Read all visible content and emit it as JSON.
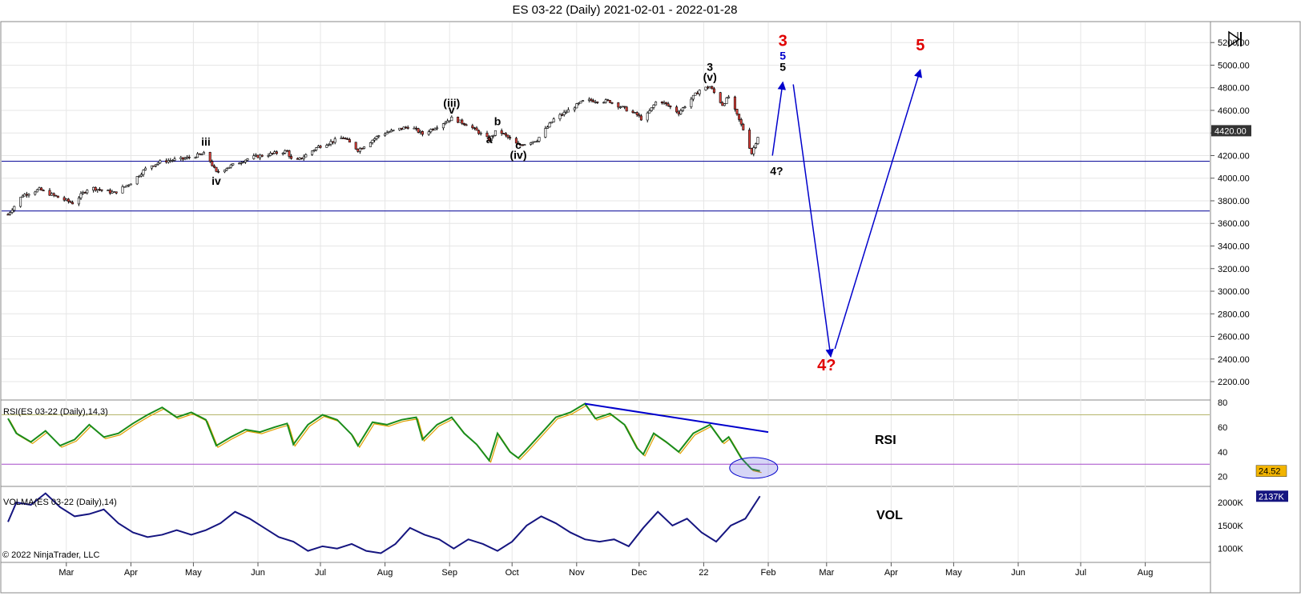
{
  "window": {
    "title": "ES 03-22 (Daily)  2021-02-01 - 2022-01-28",
    "copyright": "© 2022 NinjaTrader, LLC"
  },
  "colors": {
    "candle_up": "#ffffff",
    "candle_down": "#e0413a",
    "wave_arrow": "#0000cc",
    "h_line": "#1a1aa0",
    "rsi_line": "#1a8c1a",
    "rsi_avg": "#e0a000",
    "vol_line": "#151580",
    "label_red": "#e00000",
    "label_blue": "#0000cc"
  },
  "chart_data": {
    "type": "candlestick",
    "title": "ES 03-22 (Daily)  2021-02-01 - 2022-01-28",
    "x_tick_labels": [
      "Mar",
      "Apr",
      "May",
      "Jun",
      "Jul",
      "Aug",
      "Sep",
      "Oct",
      "Nov",
      "Dec",
      "22",
      "Feb",
      "Mar",
      "Apr",
      "May",
      "Jun",
      "Jul",
      "Aug"
    ],
    "x_range": [
      "2021-02-01",
      "2022-08-31"
    ],
    "price_panel": {
      "y_ticks": [
        2200,
        2400,
        2600,
        2800,
        3000,
        3200,
        3400,
        3600,
        3800,
        4000,
        4200,
        4400,
        4600,
        4800,
        5000,
        5200
      ],
      "y_tick_labels": [
        "2200.00",
        "2400.00",
        "2600.00",
        "2800.00",
        "3000.00",
        "3200.00",
        "3400.00",
        "3600.00",
        "3800.00",
        "4000.00",
        "4200.00",
        "4400.00",
        "4600.00",
        "4800.00",
        "5000.00",
        "5200.00"
      ],
      "ylim": [
        2080,
        5350
      ],
      "last_price_label": "4420.00",
      "last_price": 4420,
      "horizontal_lines": [
        4150,
        3710
      ],
      "price_path": [
        [
          "2021-02-01",
          3680
        ],
        [
          "2021-02-08",
          3850
        ],
        [
          "2021-02-16",
          3900
        ],
        [
          "2021-02-25",
          3830
        ],
        [
          "2021-03-04",
          3780
        ],
        [
          "2021-03-12",
          3920
        ],
        [
          "2021-03-24",
          3870
        ],
        [
          "2021-04-01",
          3960
        ],
        [
          "2021-04-09",
          4100
        ],
        [
          "2021-04-16",
          4150
        ],
        [
          "2021-04-26",
          4170
        ],
        [
          "2021-05-07",
          4220
        ],
        [
          "2021-05-12",
          4050
        ],
        [
          "2021-05-19",
          4110
        ],
        [
          "2021-05-28",
          4180
        ],
        [
          "2021-06-15",
          4240
        ],
        [
          "2021-06-18",
          4130
        ],
        [
          "2021-06-30",
          4280
        ],
        [
          "2021-07-12",
          4360
        ],
        [
          "2021-07-19",
          4250
        ],
        [
          "2021-07-30",
          4390
        ],
        [
          "2021-08-13",
          4460
        ],
        [
          "2021-08-19",
          4390
        ],
        [
          "2021-09-02",
          4530
        ],
        [
          "2021-09-10",
          4470
        ],
        [
          "2021-09-20",
          4340
        ],
        [
          "2021-09-24",
          4430
        ],
        [
          "2021-10-04",
          4290
        ],
        [
          "2021-10-13",
          4340
        ],
        [
          "2021-10-21",
          4520
        ],
        [
          "2021-11-05",
          4690
        ],
        [
          "2021-11-17",
          4680
        ],
        [
          "2021-11-30",
          4560
        ],
        [
          "2021-12-03",
          4510
        ],
        [
          "2021-12-10",
          4700
        ],
        [
          "2021-12-20",
          4580
        ],
        [
          "2021-12-30",
          4780
        ],
        [
          "2022-01-04",
          4810
        ],
        [
          "2022-01-10",
          4650
        ],
        [
          "2022-01-13",
          4720
        ],
        [
          "2022-01-21",
          4390
        ],
        [
          "2022-01-24",
          4220
        ],
        [
          "2022-01-28",
          4420
        ]
      ]
    },
    "wave_labels": [
      {
        "text": "iii",
        "date": "2021-05-07",
        "price": 4290,
        "color": "#000000"
      },
      {
        "text": "iv",
        "date": "2021-05-12",
        "price": 3940,
        "color": "#000000"
      },
      {
        "text": "(iii)",
        "date": "2021-09-02",
        "price": 4630,
        "color": "#000000"
      },
      {
        "text": "v",
        "date": "2021-09-02",
        "price": 4570,
        "color": "#000000"
      },
      {
        "text": "a",
        "date": "2021-09-20",
        "price": 4310,
        "color": "#000000"
      },
      {
        "text": "b",
        "date": "2021-09-24",
        "price": 4470,
        "color": "#000000"
      },
      {
        "text": "c",
        "date": "2021-10-04",
        "price": 4260,
        "color": "#000000"
      },
      {
        "text": "(iv)",
        "date": "2021-10-04",
        "price": 4170,
        "color": "#000000"
      },
      {
        "text": "3",
        "date": "2022-01-04",
        "price": 4950,
        "color": "#000000"
      },
      {
        "text": "(v)",
        "date": "2022-01-04",
        "price": 4860,
        "color": "#000000"
      },
      {
        "text": "3",
        "date": "2022-02-08",
        "price": 5170,
        "color": "#e00000"
      },
      {
        "text": "5",
        "date": "2022-02-08",
        "price": 5050,
        "color": "#0000cc"
      },
      {
        "text": "5",
        "date": "2022-02-08",
        "price": 4950,
        "color": "#000000"
      },
      {
        "text": "4?",
        "date": "2022-02-05",
        "price": 4030,
        "color": "#000000"
      },
      {
        "text": "4?",
        "date": "2022-03-01",
        "price": 2300,
        "color": "#e00000"
      },
      {
        "text": "5",
        "date": "2022-04-15",
        "price": 5130,
        "color": "#e00000"
      }
    ],
    "wave_arrows": [
      {
        "from": [
          "2022-02-03",
          4200
        ],
        "to": [
          "2022-02-08",
          4850
        ]
      },
      {
        "from": [
          "2022-02-13",
          4830
        ],
        "to": [
          "2022-03-03",
          2420
        ]
      },
      {
        "from": [
          "2022-03-05",
          2490
        ],
        "to": [
          "2022-04-15",
          4960
        ]
      }
    ],
    "rsi_panel": {
      "label": "RSI(ES 03-22 (Daily),14,3)",
      "title": "RSI",
      "y_ticks": [
        20,
        40,
        60,
        80
      ],
      "y_tick_labels": [
        "20",
        "40",
        "60",
        "80"
      ],
      "ylim": [
        12,
        82
      ],
      "levels": [
        70,
        30
      ],
      "last_value_label": "24.52",
      "values": [
        [
          "2021-02-01",
          67
        ],
        [
          "2021-02-05",
          55
        ],
        [
          "2021-02-12",
          48
        ],
        [
          "2021-02-19",
          57
        ],
        [
          "2021-02-26",
          45
        ],
        [
          "2021-03-05",
          50
        ],
        [
          "2021-03-12",
          62
        ],
        [
          "2021-03-19",
          52
        ],
        [
          "2021-03-26",
          55
        ],
        [
          "2021-04-02",
          63
        ],
        [
          "2021-04-09",
          70
        ],
        [
          "2021-04-16",
          76
        ],
        [
          "2021-04-23",
          68
        ],
        [
          "2021-04-30",
          72
        ],
        [
          "2021-05-07",
          66
        ],
        [
          "2021-05-12",
          45
        ],
        [
          "2021-05-19",
          52
        ],
        [
          "2021-05-26",
          58
        ],
        [
          "2021-06-02",
          56
        ],
        [
          "2021-06-09",
          60
        ],
        [
          "2021-06-15",
          63
        ],
        [
          "2021-06-18",
          46
        ],
        [
          "2021-06-25",
          62
        ],
        [
          "2021-07-02",
          70
        ],
        [
          "2021-07-09",
          66
        ],
        [
          "2021-07-16",
          54
        ],
        [
          "2021-07-19",
          45
        ],
        [
          "2021-07-26",
          64
        ],
        [
          "2021-08-02",
          62
        ],
        [
          "2021-08-09",
          66
        ],
        [
          "2021-08-16",
          68
        ],
        [
          "2021-08-19",
          50
        ],
        [
          "2021-08-26",
          62
        ],
        [
          "2021-09-02",
          68
        ],
        [
          "2021-09-08",
          55
        ],
        [
          "2021-09-14",
          46
        ],
        [
          "2021-09-20",
          33
        ],
        [
          "2021-09-24",
          55
        ],
        [
          "2021-09-30",
          40
        ],
        [
          "2021-10-04",
          35
        ],
        [
          "2021-10-08",
          42
        ],
        [
          "2021-10-15",
          55
        ],
        [
          "2021-10-22",
          68
        ],
        [
          "2021-10-29",
          72
        ],
        [
          "2021-11-05",
          79
        ],
        [
          "2021-11-10",
          67
        ],
        [
          "2021-11-17",
          71
        ],
        [
          "2021-11-24",
          62
        ],
        [
          "2021-11-30",
          43
        ],
        [
          "2021-12-03",
          38
        ],
        [
          "2021-12-08",
          55
        ],
        [
          "2021-12-14",
          48
        ],
        [
          "2021-12-20",
          40
        ],
        [
          "2021-12-27",
          55
        ],
        [
          "2022-01-04",
          62
        ],
        [
          "2022-01-10",
          48
        ],
        [
          "2022-01-13",
          52
        ],
        [
          "2022-01-19",
          35
        ],
        [
          "2022-01-24",
          26
        ],
        [
          "2022-01-28",
          24.5
        ]
      ],
      "trendline": {
        "from": [
          "2021-11-05",
          79
        ],
        "to": [
          "2022-02-01",
          56
        ]
      },
      "highlight_ellipse_center": [
        "2022-01-25",
        27
      ]
    },
    "vol_panel": {
      "label": "VOLMA(ES 03-22 (Daily),14)",
      "title": "VOL",
      "y_ticks": [
        1000000,
        1500000,
        2000000
      ],
      "y_tick_labels": [
        "1000K",
        "1500K",
        "2000K"
      ],
      "ylim": [
        700000,
        2350000
      ],
      "last_value_label": "2137K",
      "values": [
        [
          "2021-02-01",
          1580000
        ],
        [
          "2021-02-05",
          2000000
        ],
        [
          "2021-02-12",
          1950000
        ],
        [
          "2021-02-19",
          2200000
        ],
        [
          "2021-02-26",
          1900000
        ],
        [
          "2021-03-05",
          1700000
        ],
        [
          "2021-03-12",
          1750000
        ],
        [
          "2021-03-19",
          1850000
        ],
        [
          "2021-03-26",
          1550000
        ],
        [
          "2021-04-02",
          1350000
        ],
        [
          "2021-04-09",
          1250000
        ],
        [
          "2021-04-16",
          1300000
        ],
        [
          "2021-04-23",
          1400000
        ],
        [
          "2021-04-30",
          1300000
        ],
        [
          "2021-05-07",
          1400000
        ],
        [
          "2021-05-14",
          1550000
        ],
        [
          "2021-05-21",
          1800000
        ],
        [
          "2021-05-28",
          1650000
        ],
        [
          "2021-06-04",
          1450000
        ],
        [
          "2021-06-11",
          1250000
        ],
        [
          "2021-06-18",
          1150000
        ],
        [
          "2021-06-25",
          950000
        ],
        [
          "2021-07-02",
          1050000
        ],
        [
          "2021-07-09",
          1000000
        ],
        [
          "2021-07-16",
          1100000
        ],
        [
          "2021-07-23",
          950000
        ],
        [
          "2021-07-30",
          900000
        ],
        [
          "2021-08-06",
          1100000
        ],
        [
          "2021-08-13",
          1450000
        ],
        [
          "2021-08-20",
          1300000
        ],
        [
          "2021-08-27",
          1200000
        ],
        [
          "2021-09-03",
          1000000
        ],
        [
          "2021-09-10",
          1200000
        ],
        [
          "2021-09-17",
          1100000
        ],
        [
          "2021-09-24",
          950000
        ],
        [
          "2021-10-01",
          1150000
        ],
        [
          "2021-10-08",
          1500000
        ],
        [
          "2021-10-15",
          1700000
        ],
        [
          "2021-10-22",
          1550000
        ],
        [
          "2021-10-29",
          1350000
        ],
        [
          "2021-11-05",
          1200000
        ],
        [
          "2021-11-12",
          1150000
        ],
        [
          "2021-11-19",
          1200000
        ],
        [
          "2021-11-26",
          1050000
        ],
        [
          "2021-12-03",
          1450000
        ],
        [
          "2021-12-10",
          1800000
        ],
        [
          "2021-12-17",
          1500000
        ],
        [
          "2021-12-24",
          1650000
        ],
        [
          "2021-12-31",
          1350000
        ],
        [
          "2022-01-07",
          1150000
        ],
        [
          "2022-01-14",
          1500000
        ],
        [
          "2022-01-21",
          1650000
        ],
        [
          "2022-01-28",
          2137000
        ]
      ]
    }
  }
}
